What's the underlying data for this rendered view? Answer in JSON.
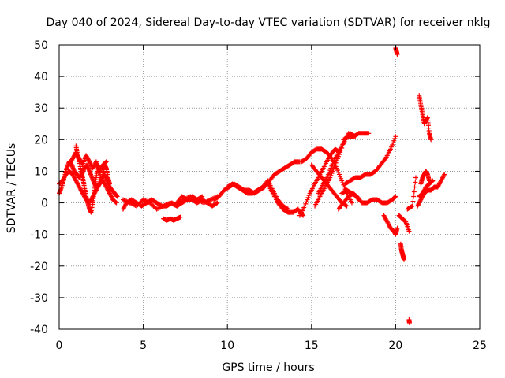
{
  "chart_data": {
    "type": "scatter",
    "title": "Day 040 of 2024, Sidereal Day-to-day VTEC variation (SDTVAR) for receiver nklg",
    "xlabel": "GPS time / hours",
    "ylabel": "SDTVAR / TECUs",
    "xlim": [
      0,
      25
    ],
    "ylim": [
      -40,
      50
    ],
    "x_ticks": [
      "0",
      "5",
      "10",
      "15",
      "20",
      "25"
    ],
    "y_ticks": [
      "-40",
      "-30",
      "-20",
      "-10",
      "0",
      "10",
      "20",
      "30",
      "40",
      "50"
    ],
    "grid": true,
    "marker": "+",
    "series": [
      {
        "name": "cluster-early-1",
        "x": [
          0.0,
          0.15,
          0.3,
          0.45,
          0.6,
          0.75,
          0.9,
          1.05,
          1.2,
          1.35,
          1.5,
          1.65,
          1.8,
          1.95,
          2.1,
          2.25,
          2.4,
          2.55,
          2.7,
          2.85,
          3.0,
          3.15,
          3.3,
          3.45
        ],
        "y": [
          3,
          5,
          8,
          11,
          13,
          12,
          10,
          9,
          8,
          9,
          11,
          12,
          10,
          8,
          6,
          5,
          6,
          8,
          9,
          7,
          5,
          4,
          3,
          2
        ]
      },
      {
        "name": "cluster-early-2",
        "x": [
          0.0,
          0.2,
          0.4,
          0.6,
          0.8,
          1.0,
          1.2,
          1.4,
          1.6,
          1.8,
          2.0,
          2.2,
          2.4,
          2.6,
          2.8,
          3.0,
          3.2,
          3.4
        ],
        "y": [
          6,
          7,
          9,
          10,
          9,
          7,
          5,
          3,
          1,
          0,
          2,
          4,
          6,
          7,
          5,
          3,
          1,
          0
        ]
      },
      {
        "name": "cluster-early-3",
        "x": [
          1.0,
          1.1,
          1.2,
          1.3,
          1.4,
          1.5,
          1.6,
          1.7,
          1.8,
          1.9,
          2.0,
          2.1,
          2.2,
          2.3,
          2.4,
          2.5,
          2.6,
          2.7,
          2.8,
          2.9,
          3.0
        ],
        "y": [
          18,
          15,
          13,
          10,
          8,
          5,
          2,
          0,
          -2,
          -3,
          0,
          4,
          8,
          12,
          10,
          7,
          9,
          12,
          11,
          8,
          6
        ]
      },
      {
        "name": "cluster-early-4",
        "x": [
          0.6,
          0.8,
          1.0,
          1.2,
          1.4,
          1.6,
          1.8,
          2.0,
          2.2,
          2.4,
          2.6,
          2.8
        ],
        "y": [
          12,
          14,
          16,
          14,
          12,
          15,
          13,
          11,
          13,
          10,
          12,
          13
        ]
      },
      {
        "name": "low-band-1",
        "x": [
          3.8,
          4.0,
          4.3,
          4.6,
          4.9,
          5.2,
          5.5,
          5.8,
          6.1,
          6.4,
          6.7,
          7.0,
          7.3,
          7.6,
          7.9,
          8.2,
          8.5,
          8.8,
          9.1,
          9.4
        ],
        "y": [
          -2,
          0,
          1,
          0,
          -1,
          0,
          1,
          0,
          -1,
          -1,
          0,
          -1,
          0,
          1,
          1,
          0,
          1,
          0,
          -1,
          0
        ]
      },
      {
        "name": "low-band-2",
        "x": [
          3.8,
          4.2,
          4.6,
          5.0,
          5.4,
          5.8,
          6.2,
          6.6,
          7.0,
          7.4,
          7.8,
          8.2,
          8.6,
          9.0,
          9.4
        ],
        "y": [
          1,
          0,
          -1,
          1,
          0,
          -2,
          -1,
          0,
          -1,
          1,
          2,
          1,
          0,
          1,
          2
        ]
      },
      {
        "name": "dip-6-7",
        "x": [
          6.2,
          6.4,
          6.6,
          6.8,
          7.0,
          7.2
        ],
        "y": [
          -5,
          -5.5,
          -5,
          -5.5,
          -5,
          -4.5
        ]
      },
      {
        "name": "bump-7-8",
        "x": [
          7.0,
          7.3,
          7.6,
          7.9,
          8.2,
          8.5
        ],
        "y": [
          0,
          2,
          1,
          2,
          1,
          2
        ]
      },
      {
        "name": "rise-9-14",
        "x": [
          9.2,
          9.5,
          9.8,
          10.1,
          10.4,
          10.7,
          11.0,
          11.3,
          11.6,
          11.9,
          12.2,
          12.5,
          12.8,
          13.1,
          13.4,
          13.7,
          14.0,
          14.3
        ],
        "y": [
          1,
          2,
          4,
          5,
          6,
          5,
          4,
          4,
          3,
          4,
          5,
          7,
          9,
          10,
          11,
          12,
          13,
          13
        ]
      },
      {
        "name": "wave-10-12",
        "x": [
          10.0,
          10.3,
          10.6,
          10.9,
          11.2,
          11.5,
          11.8,
          12.1,
          12.4,
          12.7,
          13.0,
          13.3,
          13.6
        ],
        "y": [
          5,
          6,
          5,
          4,
          3,
          3,
          4,
          5,
          7,
          4,
          1,
          -1,
          -2
        ]
      },
      {
        "name": "arc-12-15",
        "x": [
          12.4,
          12.7,
          13.0,
          13.3,
          13.6,
          13.9,
          14.2,
          14.5
        ],
        "y": [
          6,
          3,
          0,
          -2,
          -3,
          -3,
          -2,
          -4
        ]
      },
      {
        "name": "rise-14-16",
        "x": [
          14.3,
          14.6,
          14.9,
          15.2,
          15.5,
          15.8,
          16.1,
          16.4,
          16.7
        ],
        "y": [
          -4,
          -1,
          3,
          6,
          9,
          12,
          15,
          17,
          16
        ]
      },
      {
        "name": "cross-14-16",
        "x": [
          14.4,
          14.7,
          15.0,
          15.3,
          15.6,
          15.9,
          16.2
        ],
        "y": [
          13,
          14,
          16,
          17,
          17,
          16,
          14
        ]
      },
      {
        "name": "descend-15-17",
        "x": [
          15.0,
          15.3,
          15.6,
          15.9,
          16.2,
          16.5,
          16.8,
          17.1
        ],
        "y": [
          12,
          10,
          8,
          6,
          4,
          2,
          0,
          -1
        ]
      },
      {
        "name": "wave-15-17",
        "x": [
          15.2,
          15.5,
          15.8,
          16.1,
          16.4,
          16.7,
          17.0,
          17.3,
          17.6
        ],
        "y": [
          -1,
          2,
          5,
          8,
          12,
          16,
          20,
          22,
          21
        ]
      },
      {
        "name": "wave-16-17b",
        "x": [
          15.4,
          15.7,
          16.0,
          16.3,
          16.6,
          16.9,
          17.2
        ],
        "y": [
          3,
          6,
          9,
          13,
          16,
          19,
          22
        ]
      },
      {
        "name": "fall-16-17",
        "x": [
          16.2,
          16.5,
          16.8,
          17.1,
          17.4
        ],
        "y": [
          14,
          11,
          7,
          3,
          0
        ]
      },
      {
        "name": "upper-17-18",
        "x": [
          16.9,
          17.2,
          17.5,
          17.8,
          18.1,
          18.4
        ],
        "y": [
          20,
          21,
          21,
          22,
          22,
          22
        ]
      },
      {
        "name": "mid-17-19",
        "x": [
          17.0,
          17.3,
          17.6,
          17.9,
          18.2,
          18.5,
          18.8,
          19.1,
          19.4,
          19.7,
          20.0
        ],
        "y": [
          6,
          7,
          8,
          8,
          9,
          9,
          10,
          12,
          14,
          17,
          21
        ]
      },
      {
        "name": "low-17-19",
        "x": [
          16.8,
          17.1,
          17.4,
          17.7,
          18.0,
          18.3,
          18.6,
          18.9,
          19.2,
          19.5,
          19.8,
          20.0
        ],
        "y": [
          3,
          4,
          3,
          2,
          0,
          0,
          1,
          1,
          0,
          0,
          1,
          2
        ]
      },
      {
        "name": "descend-17-19",
        "x": [
          16.6,
          16.9,
          17.2,
          17.5,
          17.8
        ],
        "y": [
          -2,
          0,
          2,
          3,
          1
        ]
      },
      {
        "name": "sparse-19-21",
        "x": [
          19.3,
          19.5,
          19.7,
          19.9,
          20.0,
          20.1
        ],
        "y": [
          -4,
          -6,
          -8,
          -9,
          -10,
          -8
        ]
      },
      {
        "name": "spike-20",
        "x": [
          20.0,
          20.05,
          20.1
        ],
        "y": [
          49,
          48,
          47
        ]
      },
      {
        "name": "drop-20.5",
        "x": [
          20.3,
          20.35,
          20.4,
          20.45,
          20.5
        ],
        "y": [
          -13,
          -15,
          -16,
          -17,
          -18
        ]
      },
      {
        "name": "mid-20.5",
        "x": [
          20.2,
          20.4,
          20.6,
          20.8
        ],
        "y": [
          -4,
          -5,
          -6,
          -9
        ]
      },
      {
        "name": "outlier-20.8",
        "x": [
          20.8,
          20.82
        ],
        "y": [
          -37,
          -38
        ]
      },
      {
        "name": "pt-21",
        "x": [
          20.7,
          21.0,
          21.2
        ],
        "y": [
          -2,
          -1,
          8
        ]
      },
      {
        "name": "cluster-21.5",
        "x": [
          21.4,
          21.5,
          21.6,
          21.7,
          21.8,
          21.9,
          22.0,
          22.1
        ],
        "y": [
          34,
          31,
          28,
          25,
          26,
          27,
          22,
          20
        ]
      },
      {
        "name": "cluster-21.5b",
        "x": [
          21.5,
          21.6,
          21.7,
          21.8,
          21.9,
          22.0
        ],
        "y": [
          6,
          8,
          9,
          10,
          9,
          7
        ]
      },
      {
        "name": "cluster-21.5c",
        "x": [
          21.3,
          21.5,
          21.7,
          21.9,
          22.1,
          22.3,
          22.5,
          22.7,
          22.9
        ],
        "y": [
          -1,
          1,
          3,
          4,
          4,
          5,
          5,
          7,
          9
        ]
      },
      {
        "name": "cluster-21.5d",
        "x": [
          21.4,
          21.6,
          21.8,
          22.0,
          22.2
        ],
        "y": [
          2,
          3,
          5,
          6,
          7
        ]
      }
    ]
  }
}
